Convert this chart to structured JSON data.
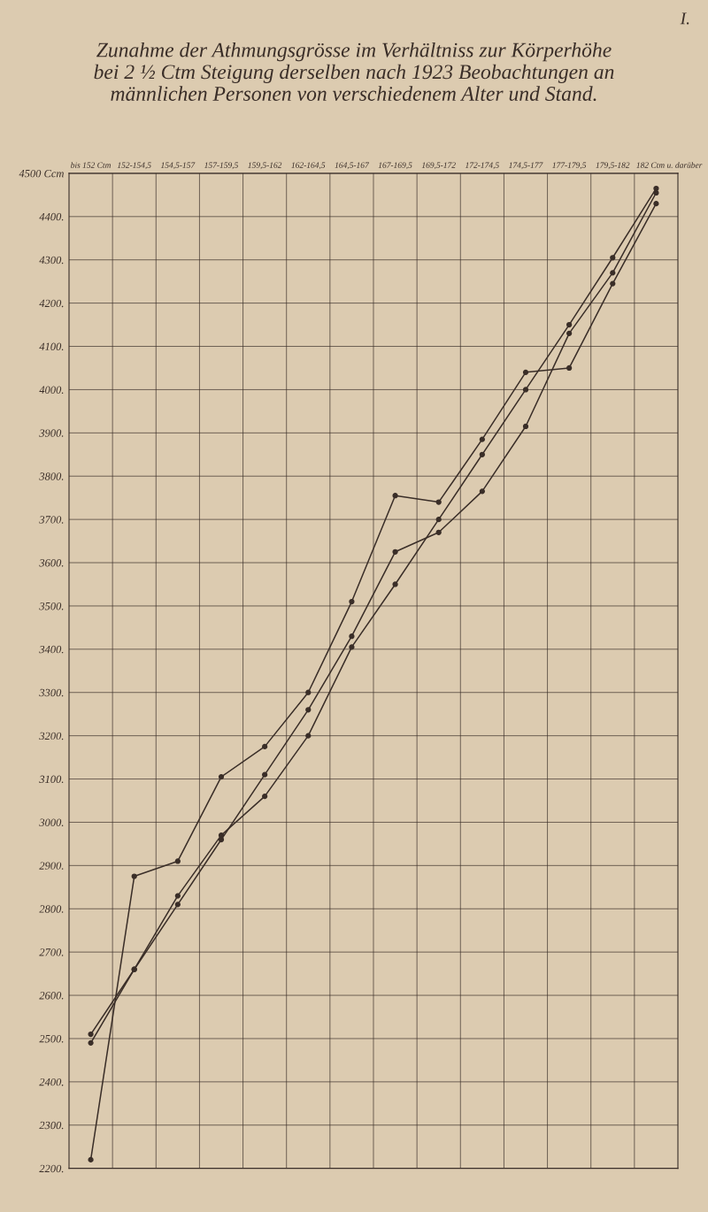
{
  "chart_data": {
    "type": "line",
    "title": "Zunahme der Athmungsgrösse im Verhältniss zur Körperhöhe\nbei 2 ½ Ctm Steigung derselben nach 1923 Beobachtungen an\nmännlichen Personen von verschiedenem Alter und Stand.",
    "annotations": [
      "I."
    ],
    "categories": [
      "bis 152 Ctm",
      "152-154,5",
      "154,5-157",
      "157-159,5",
      "159,5-162",
      "162-164,5",
      "164,5-167",
      "167-169,5",
      "169,5-172",
      "172-174,5",
      "174,5-177",
      "177-179,5",
      "179,5-182",
      "182 Ctm u. darüber"
    ],
    "series": [
      {
        "color": "#3a2e28",
        "values": [
          2220,
          2875,
          2910,
          3105,
          3175,
          3300,
          3510,
          3755,
          3740,
          3885,
          4040,
          4050,
          4245,
          4430
        ]
      },
      {
        "color": "#3a2e28",
        "values": [
          2510,
          2660,
          2810,
          2960,
          3110,
          3260,
          3430,
          3625,
          3670,
          3765,
          3915,
          4130,
          4270,
          4455
        ]
      },
      {
        "color": "#3a2e28",
        "values": [
          2490,
          2660,
          2830,
          2970,
          3060,
          3200,
          3405,
          3550,
          3700,
          3850,
          4000,
          4150,
          4305,
          4465
        ]
      }
    ],
    "ylim": [
      2200,
      4500
    ],
    "yticks": [
      {
        "value": 2200,
        "label": "2200."
      },
      {
        "value": 2300,
        "label": "2300."
      },
      {
        "value": 2400,
        "label": "2400."
      },
      {
        "value": 2500,
        "label": "2500."
      },
      {
        "value": 2600,
        "label": "2600."
      },
      {
        "value": 2700,
        "label": "2700."
      },
      {
        "value": 2800,
        "label": "2800."
      },
      {
        "value": 2900,
        "label": "2900."
      },
      {
        "value": 3000,
        "label": "3000."
      },
      {
        "value": 3100,
        "label": "3100."
      },
      {
        "value": 3200,
        "label": "3200."
      },
      {
        "value": 3300,
        "label": "3300."
      },
      {
        "value": 3400,
        "label": "3400."
      },
      {
        "value": 3500,
        "label": "3500."
      },
      {
        "value": 3600,
        "label": "3600."
      },
      {
        "value": 3700,
        "label": "3700."
      },
      {
        "value": 3800,
        "label": "3800."
      },
      {
        "value": 3900,
        "label": "3900."
      },
      {
        "value": 4000,
        "label": "4000."
      },
      {
        "value": 4100,
        "label": "4100."
      },
      {
        "value": 4200,
        "label": "4200."
      },
      {
        "value": 4300,
        "label": "4300."
      },
      {
        "value": 4400,
        "label": "4400."
      },
      {
        "value": 4500,
        "label": "4500 Ccm"
      }
    ],
    "grid": true,
    "marker": "circle",
    "line_style": "solid",
    "legend": false
  }
}
